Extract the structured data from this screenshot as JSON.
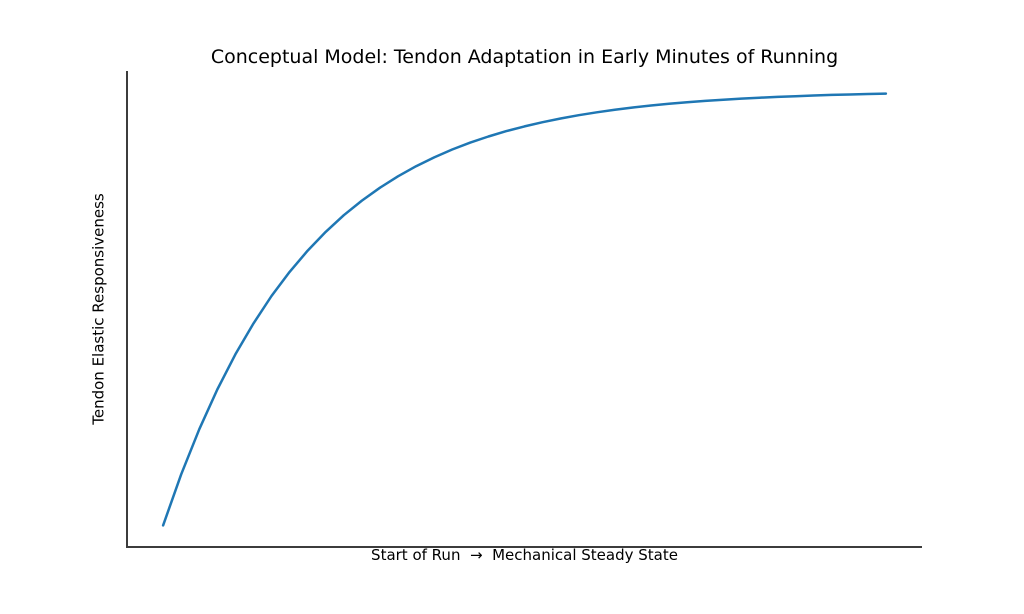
{
  "chart_data": {
    "type": "line",
    "title": "Conceptual Model: Tendon Adaptation in Early Minutes of Running",
    "xlabel": "Start of Run  →  Mechanical Steady State",
    "ylabel": "Tendon Elastic Responsiveness",
    "legend_position": "none",
    "grid": false,
    "x_tick_labels": [],
    "y_tick_labels": [],
    "xlim": [
      -0.5,
      10.5
    ],
    "ylim": [
      -0.0497,
      1.043
    ],
    "line_color": "#1f77b4",
    "line_width": 2.5,
    "spine_color": "#3c3c3c",
    "spine_width": 2,
    "background_color": "#ffffff",
    "series": [
      {
        "name": "tendon-elastic-responsiveness",
        "x": [
          0,
          0.25,
          0.5,
          0.75,
          1.0,
          1.25,
          1.5,
          1.75,
          2.0,
          2.25,
          2.5,
          2.75,
          3.0,
          3.25,
          3.5,
          3.75,
          4.0,
          4.25,
          4.5,
          4.75,
          5.0,
          5.25,
          5.5,
          5.75,
          6.0,
          6.25,
          6.5,
          6.75,
          7.0,
          7.25,
          7.5,
          7.75,
          8.0,
          8.25,
          8.5,
          8.75,
          9.0,
          9.25,
          9.5,
          9.75,
          10.0
        ],
        "y": [
          0,
          0.1175,
          0.2212,
          0.3127,
          0.3935,
          0.4647,
          0.5276,
          0.5831,
          0.6321,
          0.6753,
          0.7135,
          0.7472,
          0.7769,
          0.8031,
          0.8262,
          0.8466,
          0.8647,
          0.8806,
          0.8946,
          0.907,
          0.9179,
          0.9276,
          0.9361,
          0.9436,
          0.9502,
          0.9561,
          0.9612,
          0.9658,
          0.9698,
          0.9734,
          0.9765,
          0.9792,
          0.9817,
          0.9838,
          0.9857,
          0.9874,
          0.9889,
          0.9902,
          0.9913,
          0.9924,
          0.9933
        ]
      }
    ]
  }
}
